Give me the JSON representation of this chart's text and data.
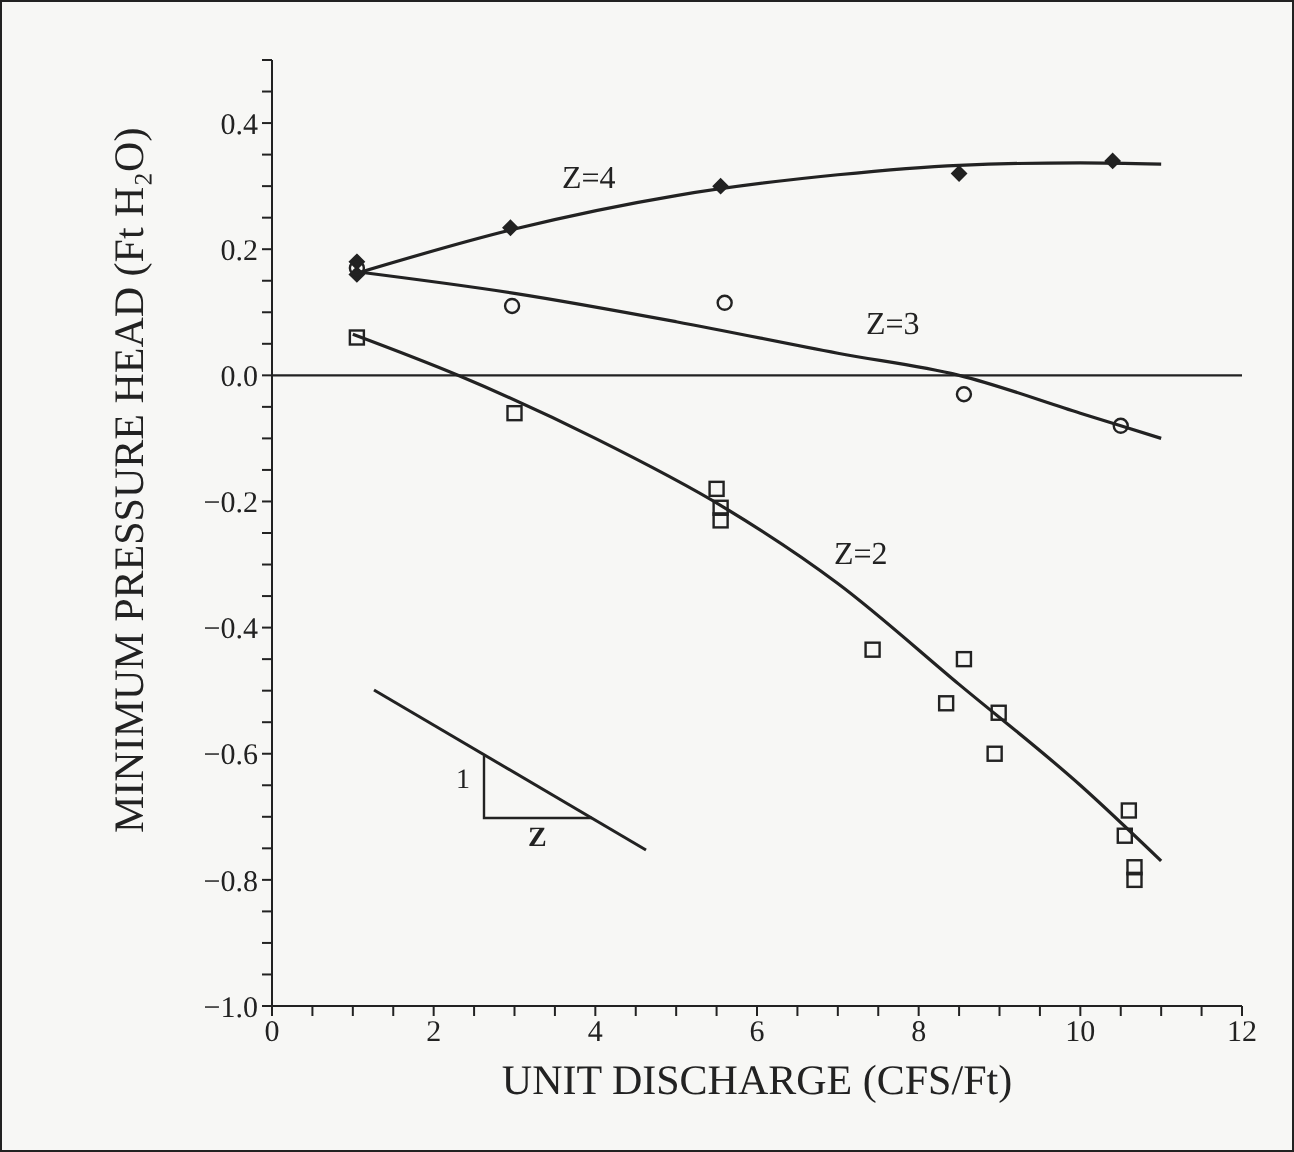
{
  "chart_data": {
    "type": "scatter",
    "xlabel": "UNIT DISCHARGE (CFS/Ft)",
    "ylabel": "MINIMUM PRESSURE HEAD (Ft H₂O)",
    "xlim": [
      0,
      12
    ],
    "ylim": [
      -1.0,
      0.5
    ],
    "xticks": [
      0,
      {
        "value": 0.5,
        "label": null
      },
      2,
      {
        "value": 1,
        "label": null
      },
      {
        "value": 1.5,
        "label": null
      },
      {
        "value": 2.5,
        "label": null
      },
      {
        "value": 3,
        "label": null
      },
      {
        "value": 3.5,
        "label": null
      },
      4,
      {
        "value": 4.5,
        "label": null
      },
      {
        "value": 5,
        "label": null
      },
      {
        "value": 5.5,
        "label": null
      },
      6,
      {
        "value": 6.5,
        "label": null
      },
      {
        "value": 7,
        "label": null
      },
      {
        "value": 7.5,
        "label": null
      },
      8,
      {
        "value": 8.5,
        "label": null
      },
      {
        "value": 9,
        "label": null
      },
      {
        "value": 9.5,
        "label": null
      },
      10,
      {
        "value": 10.5,
        "label": null
      },
      {
        "value": 11,
        "label": null
      },
      {
        "value": 11.5,
        "label": null
      },
      12
    ],
    "yticks": [
      {
        "value": -1.0,
        "label": "−1.0"
      },
      {
        "value": -0.95,
        "label": null
      },
      {
        "value": -0.9,
        "label": null
      },
      {
        "value": -0.85,
        "label": null
      },
      {
        "value": -0.8,
        "label": "−0.8"
      },
      {
        "value": -0.75,
        "label": null
      },
      {
        "value": -0.7,
        "label": null
      },
      {
        "value": -0.65,
        "label": null
      },
      {
        "value": -0.6,
        "label": "−0.6"
      },
      {
        "value": -0.55,
        "label": null
      },
      {
        "value": -0.5,
        "label": null
      },
      {
        "value": -0.45,
        "label": null
      },
      {
        "value": -0.4,
        "label": "−0.4"
      },
      {
        "value": -0.35,
        "label": null
      },
      {
        "value": -0.3,
        "label": null
      },
      {
        "value": -0.25,
        "label": null
      },
      {
        "value": -0.2,
        "label": "−0.2"
      },
      {
        "value": -0.15,
        "label": null
      },
      {
        "value": -0.1,
        "label": null
      },
      {
        "value": -0.05,
        "label": null
      },
      {
        "value": 0,
        "label": "0.0"
      },
      {
        "value": 0.05,
        "label": null
      },
      {
        "value": 0.1,
        "label": null
      },
      {
        "value": 0.15,
        "label": null
      },
      {
        "value": 0.2,
        "label": "0.2"
      },
      {
        "value": 0.25,
        "label": null
      },
      {
        "value": 0.3,
        "label": null
      },
      {
        "value": 0.35,
        "label": null
      },
      {
        "value": 0.4,
        "label": "0.4"
      },
      {
        "value": 0.45,
        "label": null
      },
      {
        "value": 0.5,
        "label": null
      }
    ],
    "grid": false,
    "legend": false,
    "ref_lines": [
      {
        "axis": "y",
        "value": 0,
        "color": "#222222"
      }
    ],
    "series": [
      {
        "type": "scatter",
        "marker": "diamond",
        "color": "#222222",
        "x": [
          1.05,
          1.05,
          2.95,
          5.55,
          8.5,
          10.4
        ],
        "values": [
          0.16,
          0.18,
          0.234,
          0.3,
          0.32,
          0.34
        ]
      },
      {
        "type": "scatter",
        "marker": "circle",
        "color": "#222222",
        "x": [
          1.05,
          2.97,
          5.6,
          8.56,
          10.5
        ],
        "values": [
          0.17,
          0.11,
          0.115,
          -0.03,
          -0.08
        ]
      },
      {
        "type": "scatter",
        "marker": "square",
        "color": "#222222",
        "x": [
          1.05,
          3.0,
          5.5,
          5.55,
          5.55,
          7.43,
          8.56,
          8.34,
          8.99,
          8.94,
          10.6,
          10.55,
          10.67,
          10.67
        ],
        "values": [
          0.06,
          -0.06,
          -0.18,
          -0.21,
          -0.23,
          -0.435,
          -0.45,
          -0.52,
          -0.535,
          -0.6,
          -0.69,
          -0.73,
          -0.78,
          -0.8
        ]
      },
      {
        "type": "line",
        "marker": "none",
        "color": "#222222",
        "x": [
          1,
          3,
          5,
          7,
          8.5,
          10,
          11
        ],
        "values": [
          0.16,
          0.232,
          0.285,
          0.318,
          0.333,
          0.337,
          0.335
        ]
      },
      {
        "type": "line",
        "marker": "none",
        "color": "#222222",
        "x": [
          1,
          3,
          5,
          7,
          8.5,
          10,
          11
        ],
        "values": [
          0.165,
          0.13,
          0.085,
          0.035,
          0.0,
          -0.06,
          -0.1
        ]
      },
      {
        "type": "line",
        "marker": "none",
        "color": "#222222",
        "x": [
          1,
          2.3,
          4,
          5.6,
          7,
          8.5,
          10,
          11
        ],
        "values": [
          0.065,
          0.0,
          -0.1,
          -0.21,
          -0.33,
          -0.49,
          -0.65,
          -0.77
        ]
      }
    ],
    "annotations": [
      "Z=4",
      "Z=3",
      "Z=2",
      "1",
      "Z"
    ]
  }
}
